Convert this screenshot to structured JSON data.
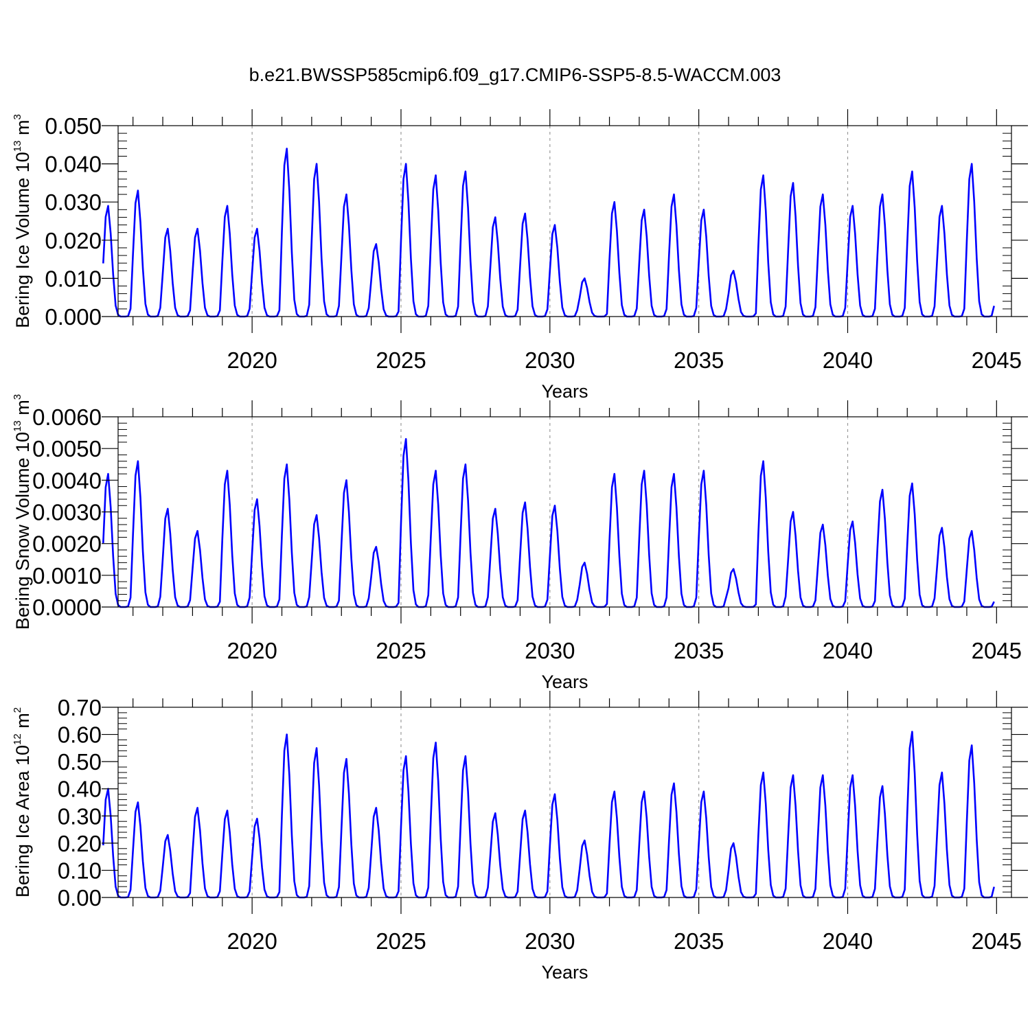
{
  "title": "b.e21.BWSSP585cmip6.f09_g17.CMIP6-SSP5-8.5-WACCM.003",
  "chart_data": [
    {
      "type": "line",
      "name": "Bering Ice Volume",
      "ylabel_text": "Bering Ice Volume 10",
      "ylabel_exp": "13",
      "ylabel_unit": " m",
      "ylabel_unit_exp": "3",
      "xlabel": "Years",
      "xlim": [
        2015,
        2045
      ],
      "ylim": [
        0,
        0.05
      ],
      "yticks": [
        "0.000",
        "0.010",
        "0.020",
        "0.030",
        "0.040",
        "0.050"
      ],
      "xticks": [
        "2020",
        "2025",
        "2030",
        "2035",
        "2040",
        "2045"
      ],
      "line_color": "#0000ff",
      "peaks": [
        0.029,
        0.033,
        0.023,
        0.023,
        0.029,
        0.023,
        0.044,
        0.04,
        0.032,
        0.019,
        0.04,
        0.037,
        0.038,
        0.026,
        0.027,
        0.024,
        0.01,
        0.03,
        0.028,
        0.032,
        0.028,
        0.012,
        0.037,
        0.035,
        0.032,
        0.029,
        0.032,
        0.038,
        0.029,
        0.04
      ],
      "series": [
        {
          "name": "Bering Ice Volume",
          "values": []
        }
      ]
    },
    {
      "type": "line",
      "name": "Bering Snow Volume",
      "ylabel_text": "Bering Snow Volume 10",
      "ylabel_exp": "13",
      "ylabel_unit": " m",
      "ylabel_unit_exp": "3",
      "xlabel": "Years",
      "xlim": [
        2015,
        2045
      ],
      "ylim": [
        0,
        0.006
      ],
      "yticks": [
        "0.0000",
        "0.0010",
        "0.0020",
        "0.0030",
        "0.0040",
        "0.0050",
        "0.0060"
      ],
      "xticks": [
        "2020",
        "2025",
        "2030",
        "2035",
        "2040",
        "2045"
      ],
      "line_color": "#0000ff",
      "peaks": [
        0.0042,
        0.0046,
        0.0031,
        0.0024,
        0.0043,
        0.0034,
        0.0045,
        0.0029,
        0.004,
        0.0019,
        0.0053,
        0.0043,
        0.0045,
        0.0031,
        0.0033,
        0.0032,
        0.0014,
        0.0042,
        0.0043,
        0.0042,
        0.0043,
        0.0012,
        0.0046,
        0.003,
        0.0026,
        0.0027,
        0.0037,
        0.0039,
        0.0025,
        0.0024
      ],
      "series": [
        {
          "name": "Bering Snow Volume",
          "values": []
        }
      ]
    },
    {
      "type": "line",
      "name": "Bering Ice Area",
      "ylabel_text": "Bering Ice Area 10",
      "ylabel_exp": "12",
      "ylabel_unit": " m",
      "ylabel_unit_exp": "2",
      "xlabel": "Years",
      "xlim": [
        2015,
        2045
      ],
      "ylim": [
        0,
        0.7
      ],
      "yticks": [
        "0.00",
        "0.10",
        "0.20",
        "0.30",
        "0.40",
        "0.50",
        "0.60",
        "0.70"
      ],
      "xticks": [
        "2020",
        "2025",
        "2030",
        "2035",
        "2040",
        "2045"
      ],
      "line_color": "#0000ff",
      "peaks": [
        0.4,
        0.35,
        0.23,
        0.33,
        0.32,
        0.29,
        0.6,
        0.55,
        0.51,
        0.33,
        0.52,
        0.57,
        0.52,
        0.31,
        0.32,
        0.38,
        0.21,
        0.39,
        0.39,
        0.42,
        0.39,
        0.2,
        0.46,
        0.45,
        0.45,
        0.45,
        0.41,
        0.61,
        0.46,
        0.56
      ],
      "series": [
        {
          "name": "Bering Ice Area",
          "values": []
        }
      ]
    }
  ]
}
